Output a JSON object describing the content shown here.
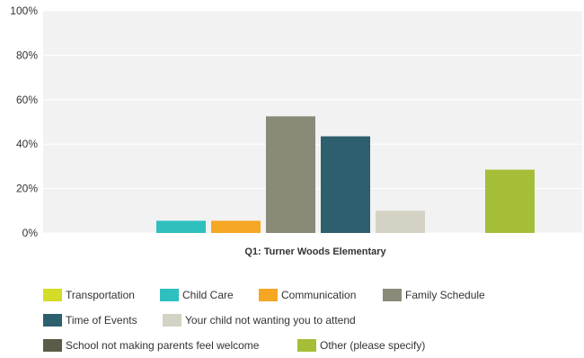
{
  "chart_data": {
    "type": "bar",
    "categories": [
      "Q1: Turner Woods Elementary"
    ],
    "xlabel": "",
    "ylabel": "",
    "ylim": [
      0,
      100
    ],
    "yticks": [
      "0%",
      "20%",
      "40%",
      "60%",
      "80%",
      "100%"
    ],
    "grid": true,
    "legend_position": "bottom",
    "series": [
      {
        "name": "Transportation",
        "values": [
          0
        ],
        "color": "#d5dc25"
      },
      {
        "name": "Child Care",
        "values": [
          5.5
        ],
        "color": "#2fbfbf"
      },
      {
        "name": "Communication",
        "values": [
          5.5
        ],
        "color": "#f5a623"
      },
      {
        "name": "Family Schedule",
        "values": [
          52.5
        ],
        "color": "#8a8a78"
      },
      {
        "name": "Time of Events",
        "values": [
          43.5
        ],
        "color": "#2d5f6e"
      },
      {
        "name": "Your child not wanting you to attend",
        "values": [
          10
        ],
        "color": "#d3d2c4"
      },
      {
        "name": "School not making parents feel welcome",
        "values": [
          0
        ],
        "color": "#5c5b4a"
      },
      {
        "name": "Other (please specify)",
        "values": [
          28.5
        ],
        "color": "#a5be38"
      }
    ]
  }
}
